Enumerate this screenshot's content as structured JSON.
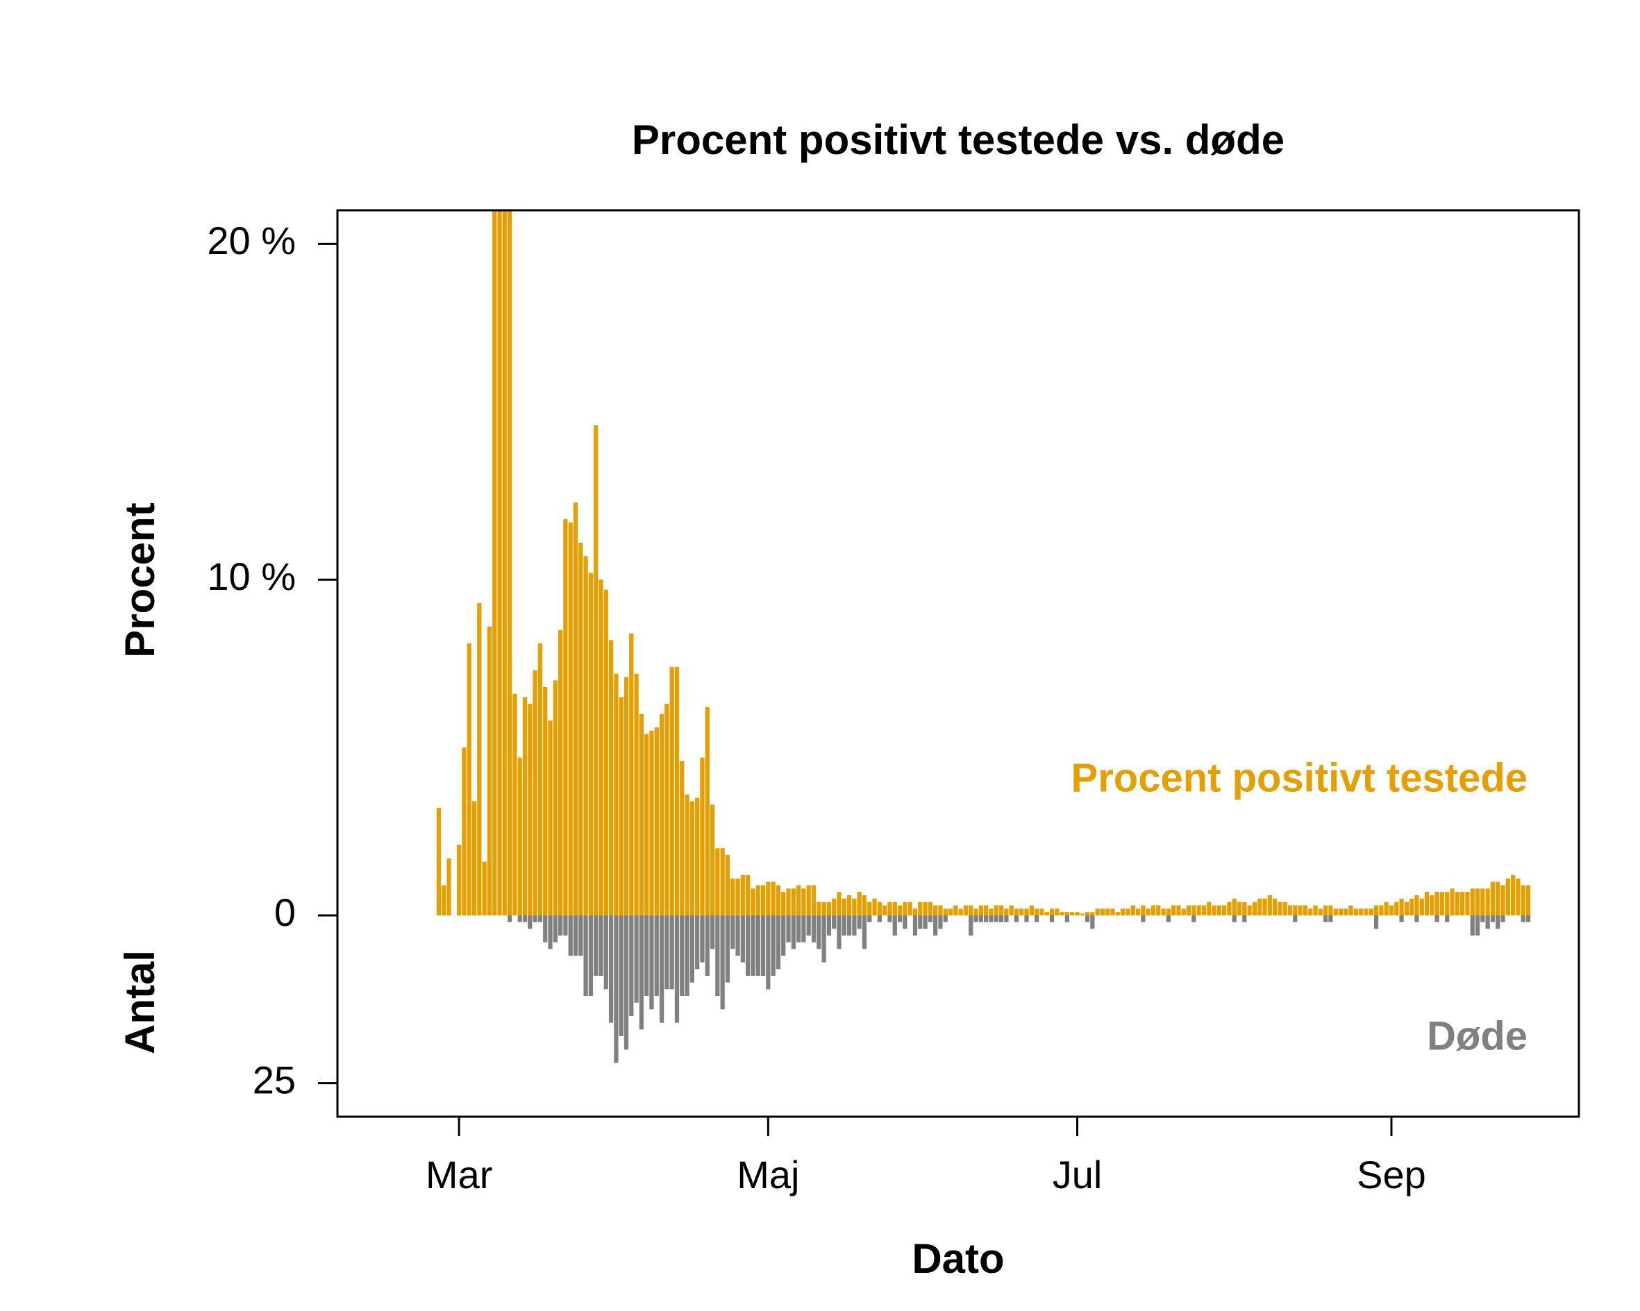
{
  "chart_data": {
    "type": "bar",
    "title": "Procent positivt testede vs. døde",
    "xlabel": "Dato",
    "ylabel": "Procent",
    "y2label": "Antal",
    "x": [
      -4,
      -3,
      -2,
      -1,
      0,
      1,
      2,
      3,
      4,
      5,
      6,
      7,
      8,
      9,
      10,
      11,
      12,
      13,
      14,
      15,
      16,
      17,
      18,
      19,
      20,
      21,
      22,
      23,
      24,
      25,
      26,
      27,
      28,
      29,
      30,
      31,
      32,
      33,
      34,
      35,
      36,
      37,
      38,
      39,
      40,
      41,
      42,
      43,
      44,
      45,
      46,
      47,
      48,
      49,
      50,
      51,
      52,
      53,
      54,
      55,
      56,
      57,
      58,
      59,
      60,
      61,
      62,
      63,
      64,
      65,
      66,
      67,
      68,
      69,
      70,
      71,
      72,
      73,
      74,
      75,
      76,
      77,
      78,
      79,
      80,
      81,
      82,
      83,
      84,
      85,
      86,
      87,
      88,
      89,
      90,
      91,
      92,
      93,
      94,
      95,
      96,
      97,
      98,
      99,
      100,
      101,
      102,
      103,
      104,
      105,
      106,
      107,
      108,
      109,
      110,
      111,
      112,
      113,
      114,
      115,
      116,
      117,
      118,
      119,
      120,
      121,
      122,
      123,
      124,
      125,
      126,
      127,
      128,
      129,
      130,
      131,
      132,
      133,
      134,
      135,
      136,
      137,
      138,
      139,
      140,
      141,
      142,
      143,
      144,
      145,
      146,
      147,
      148,
      149,
      150,
      151,
      152,
      153,
      154,
      155,
      156,
      157,
      158,
      159,
      160,
      161,
      162,
      163,
      164,
      165,
      166,
      167,
      168,
      169,
      170,
      171,
      172,
      173,
      174,
      175,
      176,
      177,
      178,
      179,
      180,
      181,
      182,
      183,
      184,
      185,
      186,
      187,
      188,
      189,
      190,
      191,
      192,
      193,
      194,
      195,
      196,
      197,
      198,
      199,
      200,
      201,
      202,
      203,
      204,
      205,
      206,
      207,
      208,
      209,
      210,
      211
    ],
    "xlim": [
      -24,
      221
    ],
    "xticks": [
      {
        "value": 0,
        "label": "Mar"
      },
      {
        "value": 61,
        "label": "Maj"
      },
      {
        "value": 122,
        "label": "Jul"
      },
      {
        "value": 184,
        "label": "Sep"
      }
    ],
    "ylim": [
      0,
      21
    ],
    "yticks": [
      0,
      {
        "value": 10,
        "label": "10 %"
      },
      {
        "value": 20,
        "label": "20 %"
      }
    ],
    "y2lim": [
      0,
      30
    ],
    "y2ticks": [
      25
    ],
    "series": [
      {
        "name": "Procent positivt testede",
        "color": "#E69F00",
        "values": [
          3.2,
          0.9,
          1.7,
          0,
          2.1,
          5.0,
          8.1,
          3.4,
          9.3,
          1.6,
          8.6,
          22,
          26,
          24,
          23,
          6.6,
          4.7,
          6.5,
          6.3,
          7.3,
          8.1,
          6.8,
          5.8,
          7.0,
          8.5,
          11.8,
          11.7,
          12.3,
          11.1,
          10.7,
          10.2,
          14.6,
          10.0,
          9.7,
          8.2,
          7.2,
          6.5,
          7.1,
          8.4,
          7.2,
          6.0,
          5.4,
          5.5,
          5.6,
          6.0,
          6.3,
          7.4,
          7.4,
          4.6,
          3.6,
          3.4,
          3.5,
          4.7,
          6.2,
          3.3,
          2.0,
          2.0,
          1.8,
          1.1,
          1.1,
          1.2,
          1.2,
          0.8,
          0.9,
          0.9,
          1.0,
          1.0,
          0.9,
          0.7,
          0.8,
          0.8,
          0.9,
          0.8,
          0.9,
          0.9,
          0.4,
          0.4,
          0.4,
          0.5,
          0.7,
          0.5,
          0.6,
          0.5,
          0.7,
          0.6,
          0.4,
          0.5,
          0.4,
          0.3,
          0.4,
          0.4,
          0.3,
          0.4,
          0.4,
          0.2,
          0.4,
          0.4,
          0.4,
          0.3,
          0.3,
          0.2,
          0.2,
          0.3,
          0.2,
          0.3,
          0.3,
          0.2,
          0.3,
          0.3,
          0.2,
          0.3,
          0.3,
          0.2,
          0.3,
          0.2,
          0.2,
          0.2,
          0.3,
          0.2,
          0.2,
          0.1,
          0.2,
          0.2,
          0.1,
          0.1,
          0.1,
          0.1,
          0.05,
          0.1,
          0.1,
          0.2,
          0.2,
          0.2,
          0.2,
          0.1,
          0.2,
          0.2,
          0.3,
          0.2,
          0.3,
          0.2,
          0.3,
          0.3,
          0.2,
          0.2,
          0.3,
          0.3,
          0.2,
          0.3,
          0.3,
          0.3,
          0.3,
          0.4,
          0.3,
          0.3,
          0.3,
          0.4,
          0.5,
          0.4,
          0.4,
          0.3,
          0.4,
          0.5,
          0.5,
          0.6,
          0.5,
          0.4,
          0.4,
          0.3,
          0.3,
          0.3,
          0.3,
          0.2,
          0.3,
          0.2,
          0.3,
          0.3,
          0.2,
          0.2,
          0.2,
          0.3,
          0.2,
          0.2,
          0.2,
          0.2,
          0.3,
          0.3,
          0.4,
          0.3,
          0.4,
          0.5,
          0.4,
          0.5,
          0.6,
          0.5,
          0.7,
          0.6,
          0.7,
          0.7,
          0.7,
          0.8,
          0.7,
          0.7,
          0.7,
          0.8,
          0.8,
          0.8,
          0.8,
          1.0,
          1.0,
          0.9,
          1.1,
          1.2,
          1.1,
          0.9,
          0.9
        ]
      },
      {
        "name": "Døde",
        "color": "#808080",
        "axis": "y2",
        "values": [
          0,
          0,
          0,
          0,
          0,
          0,
          0,
          0,
          0,
          0,
          0,
          0,
          0,
          0,
          1,
          0,
          1,
          1,
          2,
          1,
          1,
          4,
          5,
          4,
          3,
          3,
          6,
          6,
          6,
          12,
          12,
          9,
          9,
          11,
          16,
          22,
          18,
          20,
          15,
          13,
          17,
          12,
          14,
          12,
          16,
          11,
          11,
          16,
          12,
          12,
          10,
          8,
          7,
          9,
          5,
          12,
          14,
          10,
          5,
          6,
          7,
          9,
          9,
          9,
          9,
          11,
          9,
          8,
          6,
          4,
          5,
          4,
          4,
          3,
          4,
          5,
          7,
          3,
          2,
          5,
          3,
          3,
          3,
          2,
          5,
          1,
          0,
          1,
          0,
          1,
          3,
          1,
          2,
          0,
          3,
          2,
          2,
          1,
          3,
          2,
          1,
          0,
          0,
          0,
          0,
          3,
          1,
          1,
          1,
          1,
          1,
          1,
          1,
          0,
          1,
          0,
          1,
          0,
          1,
          0,
          0,
          1,
          0,
          0,
          1,
          0,
          0,
          0,
          1,
          2,
          0,
          0,
          0,
          0,
          0,
          0,
          0,
          0,
          0,
          1,
          0,
          0,
          0,
          0,
          1,
          0,
          0,
          0,
          0,
          1,
          0,
          0,
          0,
          0,
          0,
          0,
          0,
          1,
          0,
          1,
          0,
          0,
          0,
          0,
          0,
          0,
          0,
          0,
          0,
          1,
          0,
          0,
          0,
          0,
          0,
          1,
          1,
          0,
          0,
          0,
          0,
          0,
          0,
          0,
          0,
          2,
          0,
          0,
          0,
          0,
          1,
          0,
          0,
          1,
          0,
          0,
          0,
          1,
          0,
          1,
          0,
          0,
          0,
          0,
          3,
          3,
          1,
          2,
          1,
          2,
          1,
          0,
          0,
          0,
          1,
          1
        ]
      }
    ]
  }
}
